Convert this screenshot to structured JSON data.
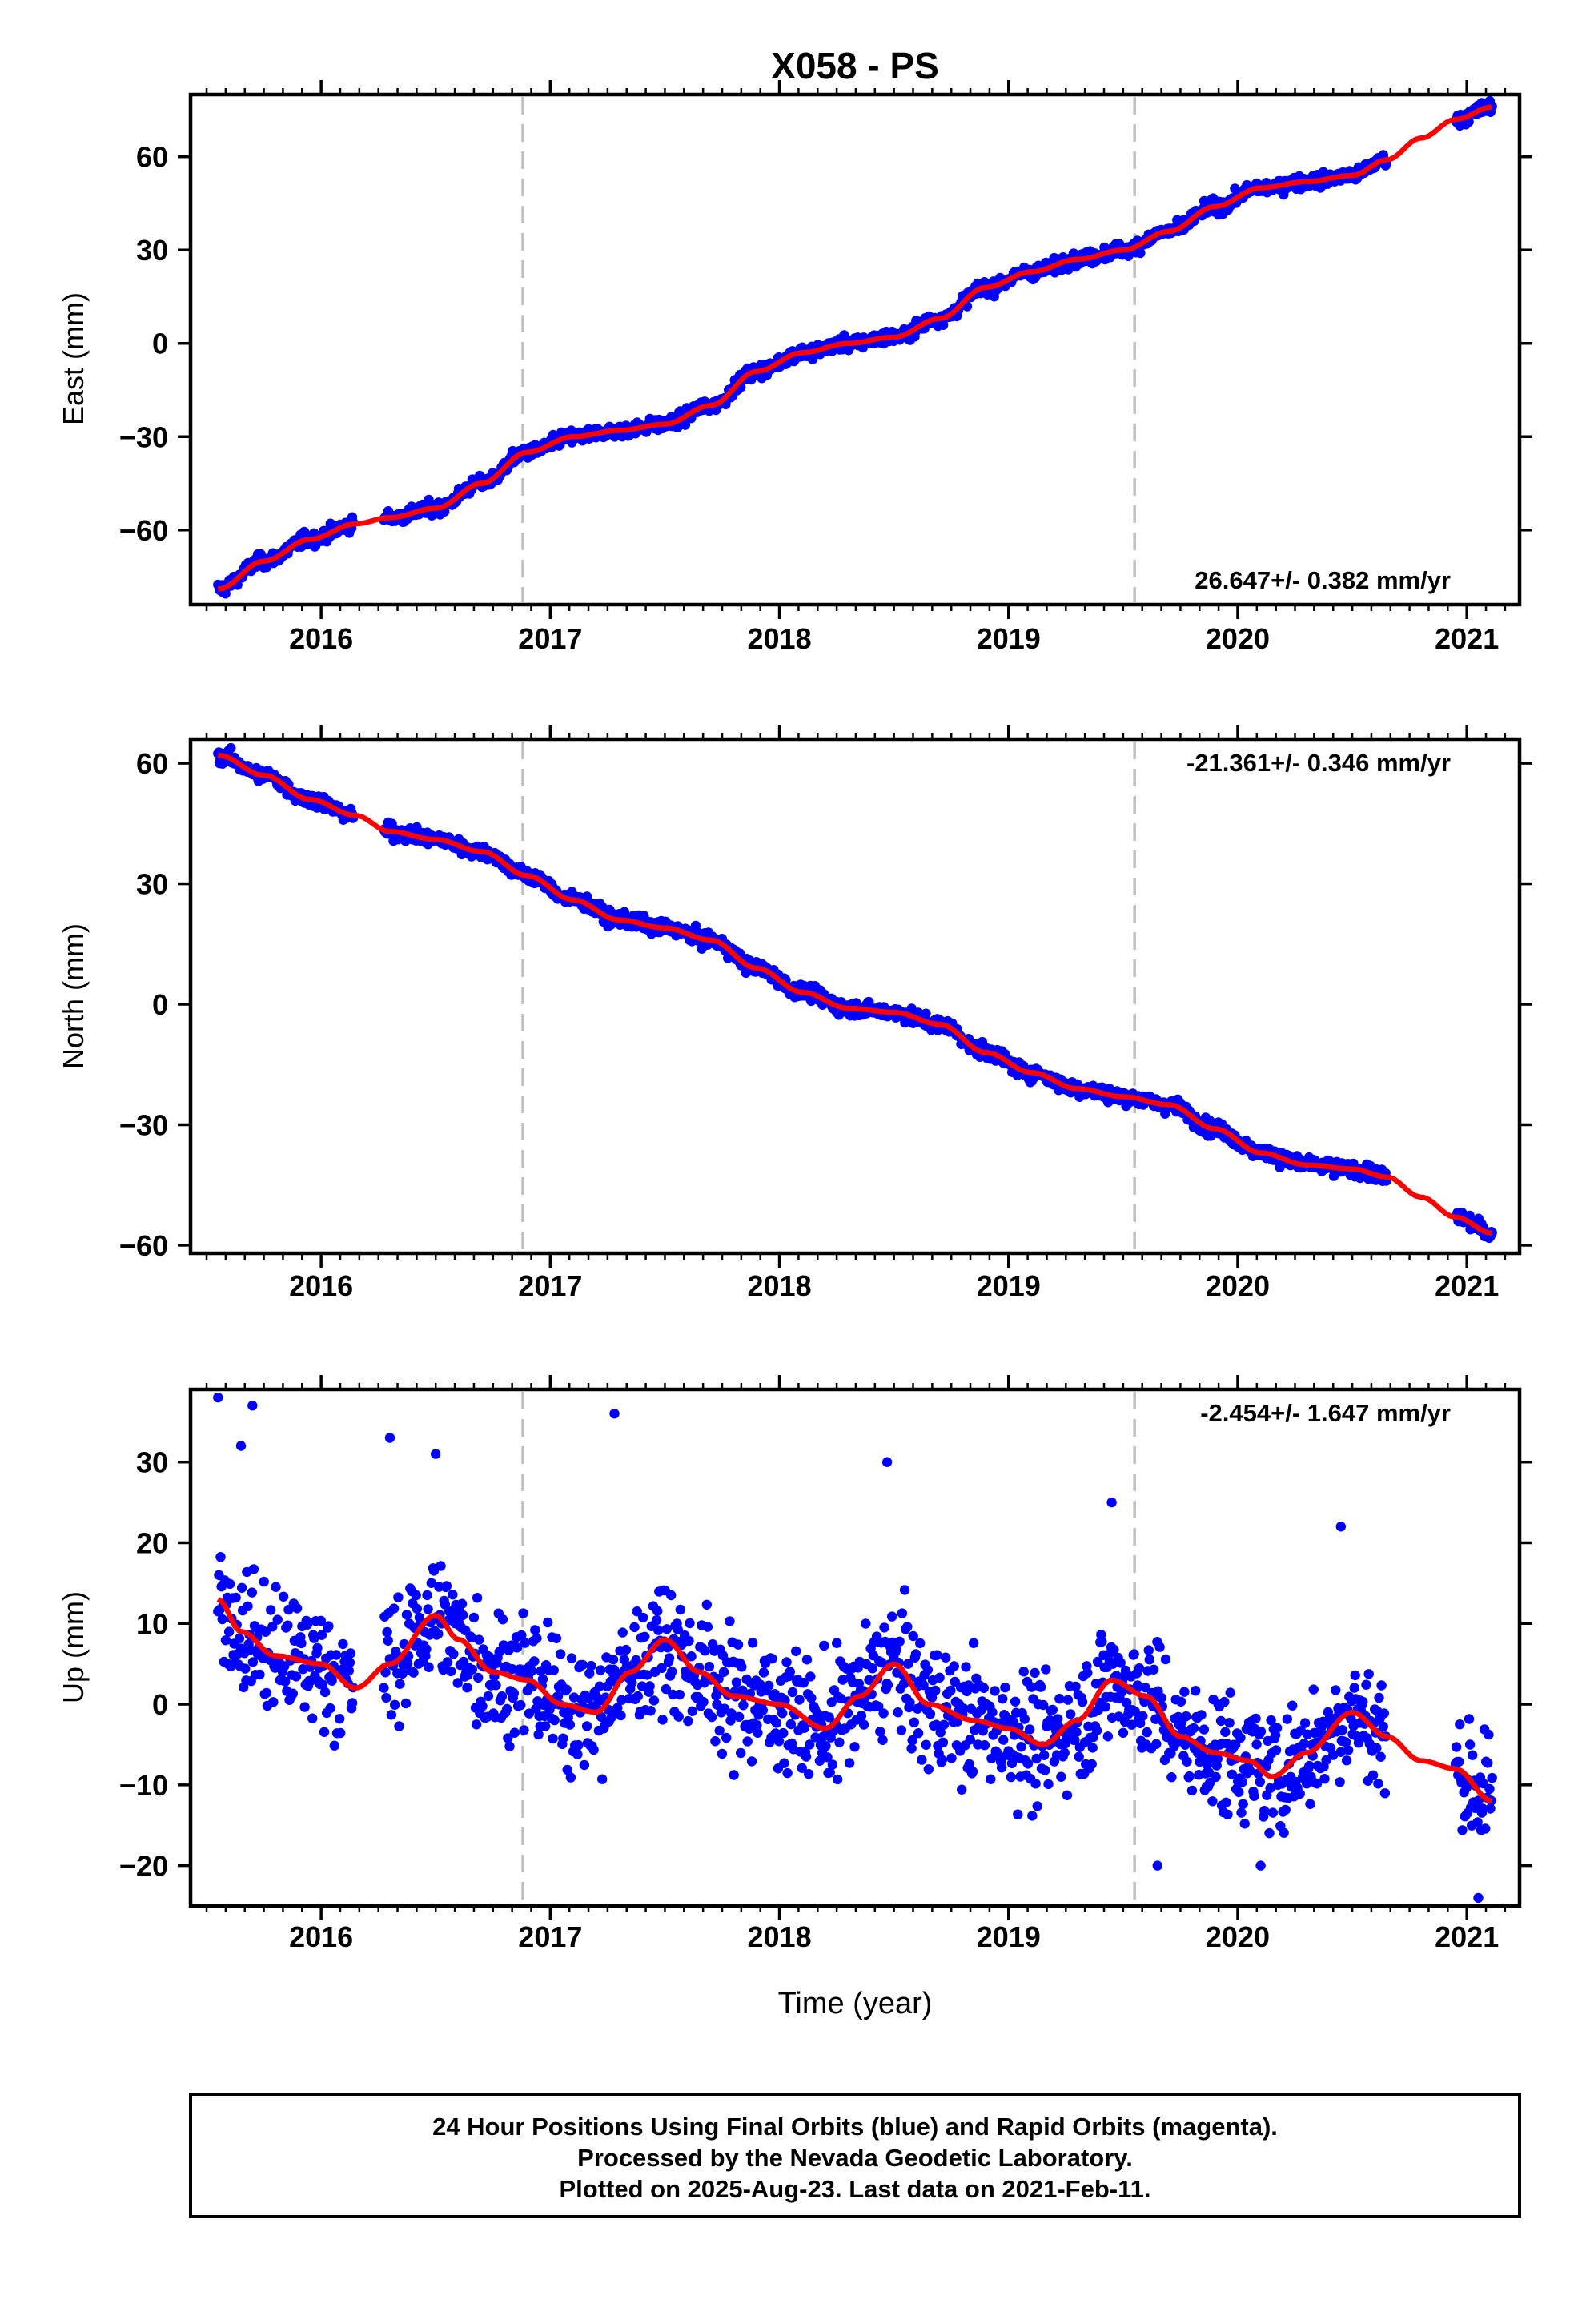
{
  "title": "X058 - PS",
  "x_axis_label": "Time (year)",
  "footer": {
    "line1": "24 Hour Positions Using Final Orbits (blue) and Rapid Orbits (magenta).",
    "line2": "Processed by the Nevada Geodetic Laboratory.",
    "line3": "Plotted on 2025-Aug-23. Last data on 2021-Feb-11."
  },
  "colors": {
    "data": "#0000ff",
    "fit": "#ff0000",
    "event_line": "#c0c0c0",
    "frame": "#000000"
  },
  "chart_data": [
    {
      "type": "scatter",
      "name": "east",
      "ylabel": "East (mm)",
      "rate": "26.647+/- 0.382 mm/yr",
      "rate_position": "bottom-right",
      "xlim": [
        2015.43,
        2021.23
      ],
      "ylim": [
        -84,
        80
      ],
      "yticks": [
        -60,
        -30,
        0,
        30,
        60
      ],
      "ytick_labels": [
        "−60",
        "−30",
        "0",
        "30",
        "60"
      ],
      "xticks": [
        2016,
        2017,
        2018,
        2019,
        2020,
        2021
      ],
      "xtick_labels": [
        "2016",
        "2017",
        "2018",
        "2019",
        "2020",
        "2021"
      ],
      "event_lines": [
        2016.88,
        2019.55
      ],
      "gaps": [
        [
          2016.14,
          2016.27
        ],
        [
          2020.65,
          2020.95
        ]
      ],
      "noise": 1.8,
      "fit_curve": [
        [
          2015.55,
          -79
        ],
        [
          2015.75,
          -70
        ],
        [
          2015.95,
          -63
        ],
        [
          2016.15,
          -58
        ],
        [
          2016.3,
          -56
        ],
        [
          2016.5,
          -53
        ],
        [
          2016.7,
          -45
        ],
        [
          2016.9,
          -35
        ],
        [
          2017.1,
          -30
        ],
        [
          2017.3,
          -28
        ],
        [
          2017.5,
          -26
        ],
        [
          2017.7,
          -20
        ],
        [
          2017.9,
          -9
        ],
        [
          2018.1,
          -3
        ],
        [
          2018.3,
          0
        ],
        [
          2018.5,
          2
        ],
        [
          2018.7,
          8
        ],
        [
          2018.9,
          18
        ],
        [
          2019.1,
          23
        ],
        [
          2019.3,
          27
        ],
        [
          2019.5,
          30
        ],
        [
          2019.7,
          36
        ],
        [
          2019.9,
          44
        ],
        [
          2020.1,
          50
        ],
        [
          2020.3,
          52
        ],
        [
          2020.5,
          54
        ],
        [
          2020.65,
          59
        ],
        [
          2020.8,
          66
        ],
        [
          2020.95,
          72
        ],
        [
          2021.11,
          76
        ]
      ]
    },
    {
      "type": "scatter",
      "name": "north",
      "ylabel": "North (mm)",
      "rate": "-21.361+/- 0.346 mm/yr",
      "rate_position": "top-right",
      "xlim": [
        2015.43,
        2021.23
      ],
      "ylim": [
        -62,
        66
      ],
      "yticks": [
        -60,
        -30,
        0,
        30,
        60
      ],
      "ytick_labels": [
        "−60",
        "−30",
        "0",
        "30",
        "60"
      ],
      "xticks": [
        2016,
        2017,
        2018,
        2019,
        2020,
        2021
      ],
      "xtick_labels": [
        "2016",
        "2017",
        "2018",
        "2019",
        "2020",
        "2021"
      ],
      "event_lines": [
        2016.88,
        2019.55
      ],
      "gaps": [
        [
          2016.14,
          2016.27
        ],
        [
          2020.65,
          2020.95
        ]
      ],
      "noise": 1.5,
      "fit_curve": [
        [
          2015.55,
          62
        ],
        [
          2015.75,
          57
        ],
        [
          2015.95,
          51
        ],
        [
          2016.15,
          47
        ],
        [
          2016.3,
          43
        ],
        [
          2016.5,
          41
        ],
        [
          2016.7,
          38
        ],
        [
          2016.9,
          32
        ],
        [
          2017.1,
          26
        ],
        [
          2017.3,
          21
        ],
        [
          2017.5,
          19
        ],
        [
          2017.7,
          16
        ],
        [
          2017.9,
          9
        ],
        [
          2018.1,
          3
        ],
        [
          2018.3,
          -1
        ],
        [
          2018.5,
          -2
        ],
        [
          2018.7,
          -5
        ],
        [
          2018.9,
          -12
        ],
        [
          2019.1,
          -17
        ],
        [
          2019.3,
          -21
        ],
        [
          2019.5,
          -23
        ],
        [
          2019.7,
          -25
        ],
        [
          2019.9,
          -31
        ],
        [
          2020.1,
          -37
        ],
        [
          2020.3,
          -40
        ],
        [
          2020.5,
          -41
        ],
        [
          2020.65,
          -43
        ],
        [
          2020.8,
          -48
        ],
        [
          2020.95,
          -53
        ],
        [
          2021.11,
          -57
        ]
      ]
    },
    {
      "type": "scatter",
      "name": "up",
      "ylabel": "Up (mm)",
      "rate": "-2.454+/- 1.647 mm/yr",
      "rate_position": "top-right",
      "xlim": [
        2015.43,
        2021.23
      ],
      "ylim": [
        -25,
        39
      ],
      "yticks": [
        -20,
        -10,
        0,
        10,
        20,
        30
      ],
      "ytick_labels": [
        "−20",
        "−10",
        "0",
        "10",
        "20",
        "30"
      ],
      "xticks": [
        2016,
        2017,
        2018,
        2019,
        2020,
        2021
      ],
      "xtick_labels": [
        "2016",
        "2017",
        "2018",
        "2019",
        "2020",
        "2021"
      ],
      "event_lines": [
        2016.88,
        2019.55
      ],
      "gaps": [
        [
          2016.14,
          2016.27
        ],
        [
          2020.65,
          2020.95
        ]
      ],
      "noise": 6.5,
      "fit_curve": [
        [
          2015.55,
          13
        ],
        [
          2015.65,
          9
        ],
        [
          2015.8,
          6
        ],
        [
          2016.0,
          5
        ],
        [
          2016.15,
          2
        ],
        [
          2016.3,
          5
        ],
        [
          2016.5,
          11
        ],
        [
          2016.6,
          8
        ],
        [
          2016.75,
          4
        ],
        [
          2016.9,
          3
        ],
        [
          2017.05,
          0
        ],
        [
          2017.2,
          -1
        ],
        [
          2017.35,
          4
        ],
        [
          2017.5,
          8
        ],
        [
          2017.65,
          4
        ],
        [
          2017.8,
          1
        ],
        [
          2018.0,
          0
        ],
        [
          2018.2,
          -3
        ],
        [
          2018.35,
          1
        ],
        [
          2018.5,
          5
        ],
        [
          2018.65,
          0
        ],
        [
          2018.85,
          -2
        ],
        [
          2019.0,
          -3
        ],
        [
          2019.15,
          -5
        ],
        [
          2019.3,
          -2
        ],
        [
          2019.45,
          3
        ],
        [
          2019.6,
          1
        ],
        [
          2019.75,
          -4
        ],
        [
          2019.9,
          -6
        ],
        [
          2020.05,
          -7
        ],
        [
          2020.15,
          -9
        ],
        [
          2020.3,
          -6
        ],
        [
          2020.5,
          -1
        ],
        [
          2020.65,
          -4
        ],
        [
          2020.8,
          -7
        ],
        [
          2020.95,
          -8
        ],
        [
          2021.11,
          -12
        ]
      ],
      "outliers": [
        [
          2015.55,
          38
        ],
        [
          2015.65,
          32
        ],
        [
          2015.7,
          37
        ],
        [
          2016.3,
          33
        ],
        [
          2016.5,
          31
        ],
        [
          2017.28,
          36
        ],
        [
          2018.47,
          30
        ],
        [
          2019.45,
          25
        ],
        [
          2020.45,
          22
        ],
        [
          2021.05,
          -24
        ],
        [
          2019.65,
          -20
        ],
        [
          2020.1,
          -20
        ]
      ]
    }
  ]
}
